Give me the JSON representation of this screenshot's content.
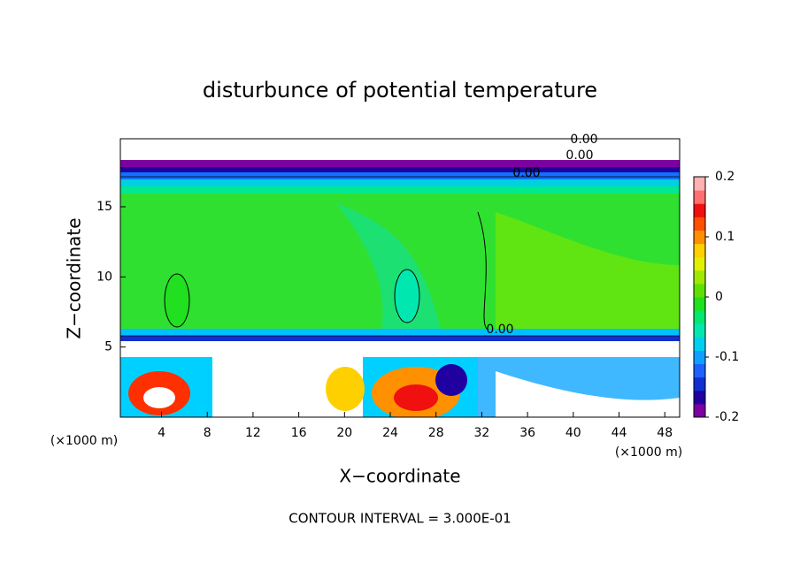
{
  "chart_data": {
    "type": "heatmap",
    "title": "disturbunce of potential temperature",
    "xlabel": "X−coordinate",
    "ylabel": "Z−coordinate",
    "y_unit": "(×1000 m)",
    "x_unit": "(×1000 m)",
    "note": "CONTOUR INTERVAL = 3.000E-01",
    "contour_labels": [
      "0.00",
      "0.00",
      "0.00",
      "0.00"
    ],
    "xlim": [
      0.4,
      49.3
    ],
    "xticks": [
      4,
      8,
      12,
      16,
      20,
      24,
      28,
      32,
      36,
      40,
      44,
      48
    ],
    "ylim": [
      0,
      19.85
    ],
    "yticks": [
      5,
      10,
      15
    ],
    "clim": [
      -0.2,
      0.2
    ],
    "cticks": [
      -0.2,
      -0.1,
      0,
      0.1,
      0.2
    ],
    "colorscale": [
      "#7d00a0",
      "#2000a0",
      "#1030d0",
      "#2060ff",
      "#10a0ff",
      "#00d0f0",
      "#00e8b0",
      "#00e870",
      "#20e020",
      "#60e000",
      "#a0e800",
      "#e0f000",
      "#ffd000",
      "#ff9000",
      "#ff5000",
      "#f01010",
      "#ff7070",
      "#ffb0b0"
    ]
  }
}
